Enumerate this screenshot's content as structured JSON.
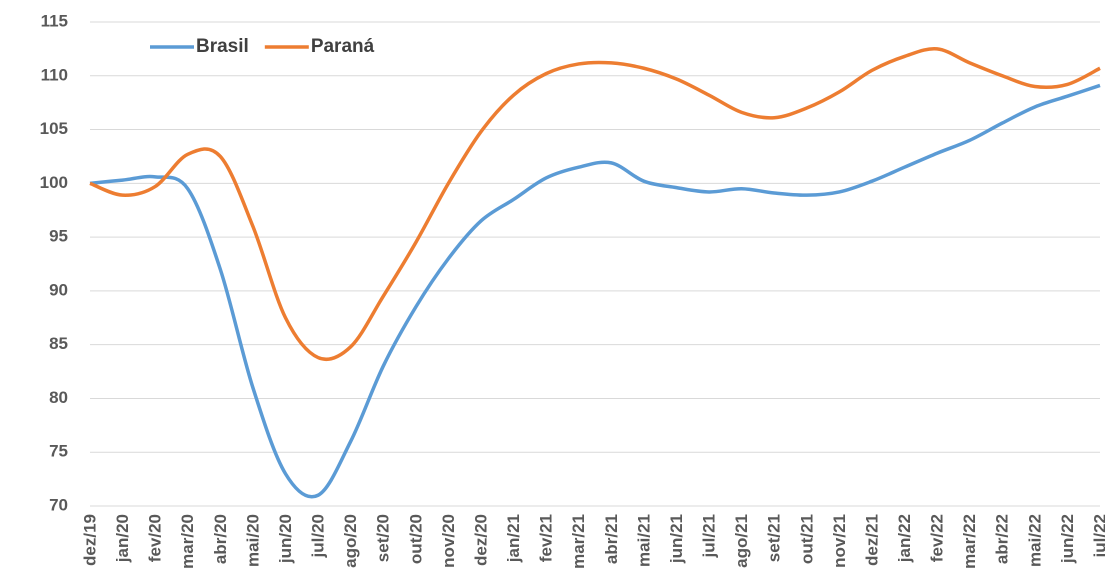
{
  "chart_data": {
    "type": "line",
    "categories": [
      "dez/19",
      "jan/20",
      "fev/20",
      "mar/20",
      "abr/20",
      "mai/20",
      "jun/20",
      "jul/20",
      "ago/20",
      "set/20",
      "out/20",
      "nov/20",
      "dez/20",
      "jan/21",
      "fev/21",
      "mar/21",
      "abr/21",
      "mai/21",
      "jun/21",
      "jul/21",
      "ago/21",
      "set/21",
      "out/21",
      "nov/21",
      "dez/21",
      "jan/22",
      "fev/22",
      "mar/22",
      "abr/22",
      "mai/22",
      "jun/22",
      "jul/22"
    ],
    "series": [
      {
        "name": "Brasil",
        "color": "#5b9bd5",
        "values": [
          100,
          100.3,
          100.6,
          99.5,
          92,
          81,
          73,
          71,
          76,
          83,
          88.5,
          93,
          96.5,
          98.5,
          100.5,
          101.5,
          101.9,
          100.2,
          99.6,
          99.2,
          99.5,
          99.1,
          98.9,
          99.2,
          100.2,
          101.5,
          102.8,
          104,
          105.6,
          107.1,
          108.1,
          109.1
        ]
      },
      {
        "name": "Paraná",
        "color": "#ed7d31",
        "values": [
          100,
          98.9,
          99.7,
          102.7,
          102.5,
          96,
          87.5,
          83.8,
          84.8,
          89.5,
          94.5,
          100,
          104.8,
          108.2,
          110.2,
          111.1,
          111.2,
          110.7,
          109.7,
          108.2,
          106.6,
          106.1,
          107,
          108.5,
          110.5,
          111.8,
          112.5,
          111.2,
          110,
          109,
          109.2,
          110.7
        ]
      }
    ],
    "ylim": [
      70,
      115
    ],
    "yticks": [
      70,
      75,
      80,
      85,
      90,
      95,
      100,
      105,
      110,
      115
    ],
    "grid": true,
    "legend": "upper left"
  }
}
